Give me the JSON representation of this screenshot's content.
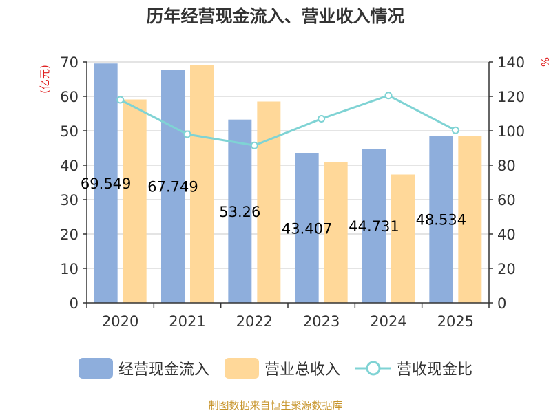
{
  "chart_data": {
    "type": "bar",
    "title": "历年经营现金流入、营业收入情况",
    "categories": [
      "2020",
      "2021",
      "2022",
      "2023",
      "2024",
      "2025"
    ],
    "ylabel_left": "(亿元)",
    "ylabel_right": "%",
    "ylim_left": [
      0,
      70
    ],
    "ylim_right": [
      0,
      140
    ],
    "yticks_left": [
      "0",
      "10",
      "20",
      "30",
      "40",
      "50",
      "60",
      "70"
    ],
    "yticks_right": [
      "0",
      "20",
      "40",
      "60",
      "80",
      "100",
      "120",
      "140"
    ],
    "grid": true,
    "legend_position": "bottom",
    "series": [
      {
        "name": "经营现金流入",
        "kind": "bar",
        "axis": "left",
        "color": "#8eaedc",
        "values": [
          69.549,
          67.749,
          53.26,
          43.407,
          44.731,
          48.534
        ],
        "labels": [
          "69.549",
          "67.749",
          "53.26",
          "43.407",
          "44.731",
          "48.534"
        ]
      },
      {
        "name": "营业总收入",
        "kind": "bar",
        "axis": "left",
        "color": "#ffd899",
        "values": [
          59.1,
          69.2,
          58.5,
          40.8,
          37.3,
          48.4
        ]
      },
      {
        "name": "营收现金比",
        "kind": "line",
        "axis": "right",
        "color": "#7fd3d4",
        "values": [
          118,
          98,
          91.5,
          107,
          120.5,
          100.3
        ]
      }
    ]
  },
  "legend": {
    "items": [
      {
        "label": "经营现金流入",
        "kind": "bar",
        "color": "#8eaedc"
      },
      {
        "label": "营业总收入",
        "kind": "bar",
        "color": "#ffd899"
      },
      {
        "label": "营收现金比",
        "kind": "line",
        "color": "#7fd3d4"
      }
    ]
  },
  "footer": {
    "text": "制图数据来自恒生聚源数据库"
  },
  "colors": {
    "axis": "#333333",
    "grid": "#c8c8c8",
    "axis_label": "#e02020",
    "footer": "#c8962e"
  }
}
